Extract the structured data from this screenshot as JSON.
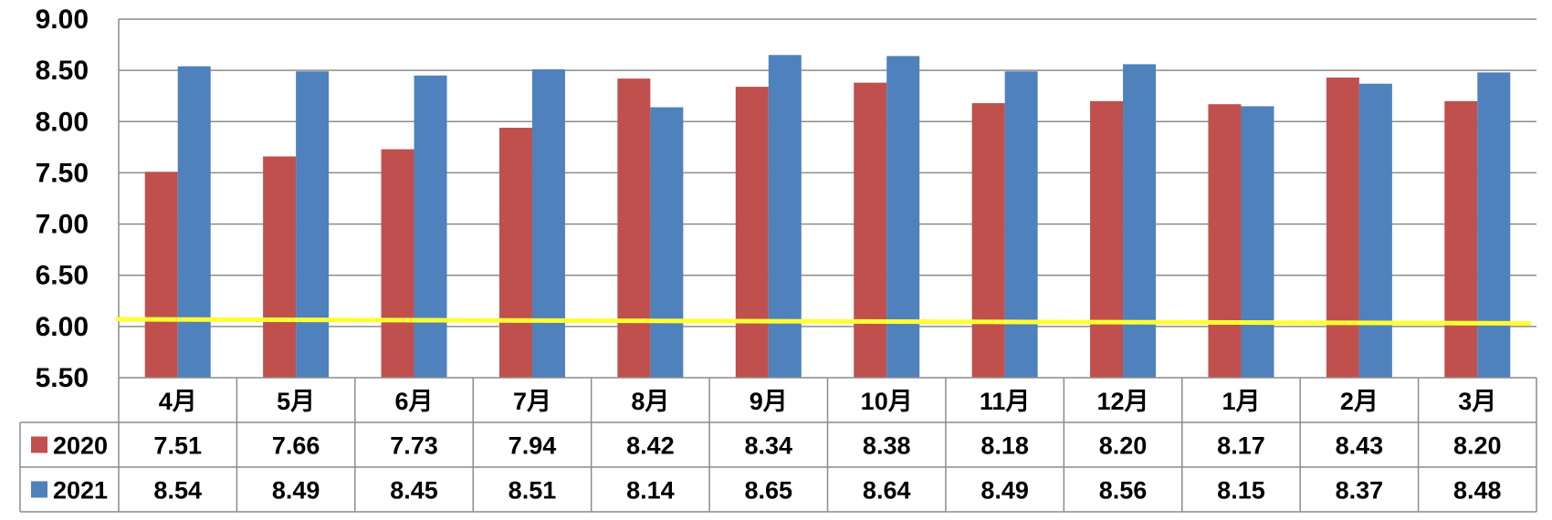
{
  "chart_data": {
    "type": "bar",
    "categories": [
      "4月",
      "5月",
      "6月",
      "7月",
      "8月",
      "9月",
      "10月",
      "11月",
      "12月",
      "1月",
      "2月",
      "3月"
    ],
    "series": [
      {
        "name": "2020",
        "color": "#C0504D",
        "values": [
          7.51,
          7.66,
          7.73,
          7.94,
          8.42,
          8.34,
          8.38,
          8.18,
          8.2,
          8.17,
          8.43,
          8.2
        ],
        "labels": [
          "7.51",
          "7.66",
          "7.73",
          "7.94",
          "8.42",
          "8.34",
          "8.38",
          "8.18",
          "8.20",
          "8.17",
          "8.43",
          "8.20"
        ]
      },
      {
        "name": "2021",
        "color": "#4F81BD",
        "values": [
          8.54,
          8.49,
          8.45,
          8.51,
          8.14,
          8.65,
          8.64,
          8.49,
          8.56,
          8.15,
          8.37,
          8.48
        ],
        "labels": [
          "8.54",
          "8.49",
          "8.45",
          "8.51",
          "8.14",
          "8.65",
          "8.64",
          "8.49",
          "8.56",
          "8.15",
          "8.37",
          "8.48"
        ]
      }
    ],
    "reference_line": {
      "color": "#FFFF33",
      "y_start": 6.07,
      "y_end": 6.03
    },
    "yticks": [
      "9.00",
      "8.50",
      "8.00",
      "7.50",
      "7.00",
      "6.50",
      "6.00",
      "5.50"
    ],
    "ylim": [
      5.5,
      9.0
    ],
    "grid": true,
    "legend": "data-table",
    "title": "",
    "xlabel": "",
    "ylabel": ""
  }
}
